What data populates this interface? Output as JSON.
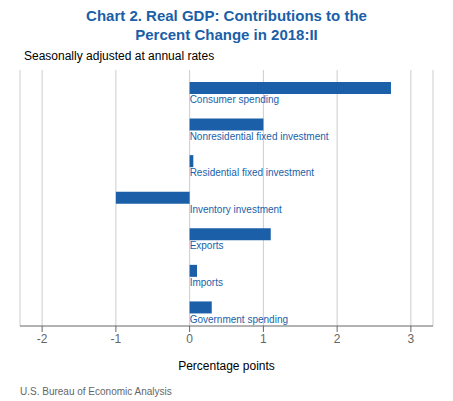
{
  "chart_data": {
    "type": "bar",
    "orientation": "horizontal",
    "title": "Chart 2. Real GDP: Contributions to the\nPercent Change in 2018:II",
    "subtitle": "Seasonally adjusted at annual rates",
    "annotations": [
      "U.S. Bureau of Economic Analysis"
    ],
    "xlabel": "Percentage points",
    "categories": [
      "Consumer spending",
      "Nonresidential fixed investment",
      "Residential fixed investment",
      "Inventory investment",
      "Exports",
      "Imports",
      "Government spending"
    ],
    "values": [
      2.73,
      1.0,
      0.05,
      -1.0,
      1.1,
      0.1,
      0.3
    ],
    "color": "#1a5fa8",
    "xlim": [
      -2.3,
      3.3
    ],
    "xticks": [
      -2,
      -1,
      0,
      1,
      2,
      3
    ],
    "grid": true,
    "tick_labels": "x"
  }
}
